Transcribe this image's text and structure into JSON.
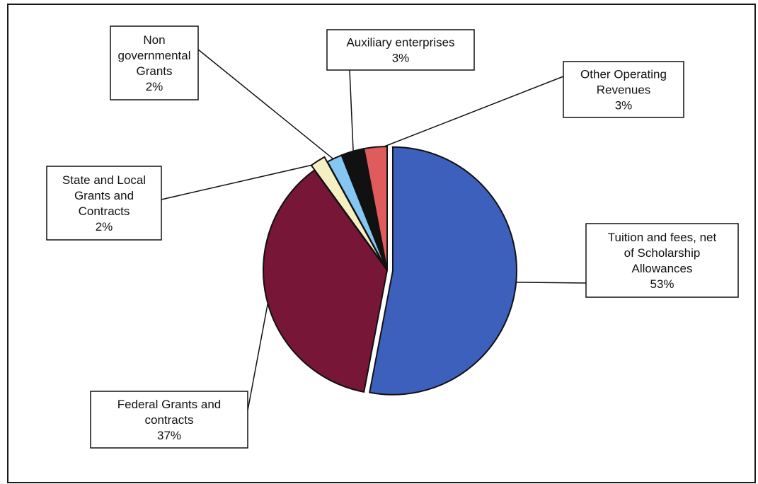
{
  "chart_data": {
    "type": "pie",
    "title": "",
    "slices": [
      {
        "label": [
          "Tuition and fees, net",
          "of Scholarship",
          "Allowances"
        ],
        "percent_label": "53%",
        "value": 53,
        "color": "#3d60bc"
      },
      {
        "label": [
          "Federal Grants and",
          "contracts"
        ],
        "percent_label": "37%",
        "value": 37,
        "color": "#771636"
      },
      {
        "label": [
          "State and Local",
          "Grants and",
          "Contracts"
        ],
        "percent_label": "2%",
        "value": 2,
        "color": "#f5efc2"
      },
      {
        "label": [
          "Non",
          "governmental",
          "Grants"
        ],
        "percent_label": "2%",
        "value": 2,
        "color": "#84c7f2"
      },
      {
        "label": [
          "Auxiliary enterprises"
        ],
        "percent_label": "3%",
        "value": 3,
        "color": "#111111"
      },
      {
        "label": [
          "Other Operating",
          "Revenues"
        ],
        "percent_label": "3%",
        "value": 3,
        "color": "#e05b5b"
      }
    ],
    "legend": "none",
    "data_labels": "boxed-callouts"
  }
}
